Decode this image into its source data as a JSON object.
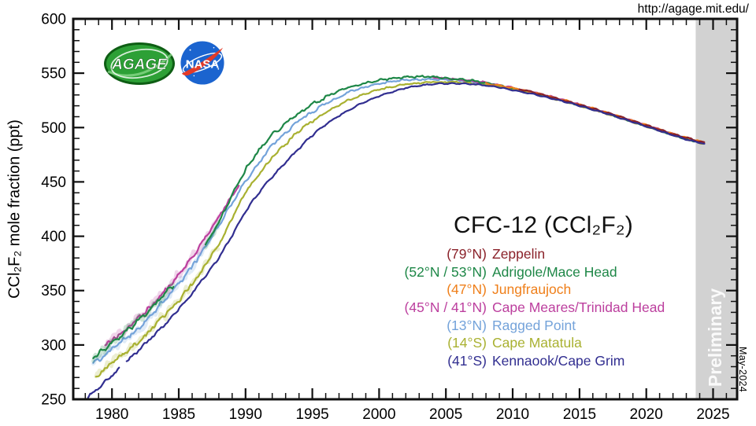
{
  "url": "http://agage.mit.edu/",
  "date_label": "May-2024",
  "preliminary_label": "Preliminary",
  "logos": {
    "agage_text": "AGAGE",
    "nasa_text": "NASA"
  },
  "chart_data": {
    "type": "line",
    "title": "CFC-12 (CCl₂F₂)",
    "ylabel": "CCl₂F₂ mole fraction (ppt)",
    "xlabel": "",
    "xlim": [
      1977.1,
      2026.8
    ],
    "ylim": [
      250,
      600
    ],
    "xticks_major": [
      1980,
      1985,
      1990,
      1995,
      2000,
      2005,
      2010,
      2015,
      2020,
      2025
    ],
    "xtick_minor_step": 1,
    "yticks_major": [
      250,
      300,
      350,
      400,
      450,
      500,
      550,
      600
    ],
    "ytick_minor_step": 10,
    "grid": false,
    "legend_position": "center-right",
    "frame_color": "#111111",
    "preliminary_band": {
      "start_year": 2023.7,
      "color": "#d2d2d2"
    },
    "series": [
      {
        "name": "Zeppelin",
        "lat": "(79°N)",
        "color": "#8a2129",
        "segments": [
          [
            [
              2010.5,
              535.5
            ],
            [
              2012,
              531
            ],
            [
              2014,
              524.5
            ],
            [
              2016,
              517.5
            ],
            [
              2018,
              510
            ],
            [
              2020,
              502
            ],
            [
              2022,
              494
            ],
            [
              2024.35,
              486
            ]
          ]
        ]
      },
      {
        "name": "Adrigole/Mace Head",
        "lat": "(52°N / 53°N)",
        "color": "#1e8747",
        "segments": [
          [
            [
              1978.6,
              289
            ],
            [
              1979.5,
              297
            ],
            [
              1980.5,
              307
            ],
            [
              1981.5,
              317
            ],
            [
              1982.5,
              328
            ],
            [
              1983.5,
              341
            ],
            [
              1984.6,
              355
            ]
          ],
          [
            [
              1987.0,
              391
            ],
            [
              1988,
              413
            ],
            [
              1989,
              438
            ],
            [
              1990,
              461
            ],
            [
              1991,
              479
            ],
            [
              1992,
              493
            ],
            [
              1993,
              504
            ],
            [
              1994,
              513
            ],
            [
              1995,
              521
            ],
            [
              1996,
              528
            ],
            [
              1997,
              534
            ],
            [
              1998,
              538
            ],
            [
              1999,
              541
            ],
            [
              2000,
              543.5
            ],
            [
              2001,
              545.5
            ],
            [
              2002,
              546.5
            ],
            [
              2003,
              547
            ],
            [
              2004,
              546.5
            ],
            [
              2005,
              545.5
            ],
            [
              2006,
              544.5
            ],
            [
              2007,
              543
            ],
            [
              2008,
              541
            ],
            [
              2009,
              538.5
            ],
            [
              2010,
              536
            ],
            [
              2011,
              533.5
            ],
            [
              2012,
              530.5
            ],
            [
              2013,
              527.5
            ],
            [
              2014,
              524
            ],
            [
              2015,
              520.5
            ],
            [
              2016,
              517
            ],
            [
              2017,
              513.5
            ],
            [
              2018,
              509.5
            ],
            [
              2019,
              505.5
            ],
            [
              2020,
              501.5
            ],
            [
              2021,
              497.5
            ],
            [
              2022,
              493.5
            ],
            [
              2023,
              489.5
            ],
            [
              2024.35,
              485.5
            ]
          ]
        ]
      },
      {
        "name": "Jungfraujoch",
        "lat": "(47°N)",
        "color": "#ef7f1a",
        "segments": [
          [
            [
              2008.0,
              540.5
            ],
            [
              2010,
              536.5
            ],
            [
              2012,
              531
            ],
            [
              2014,
              524.5
            ],
            [
              2016,
              517.5
            ],
            [
              2018,
              510
            ],
            [
              2020,
              502
            ],
            [
              2022,
              494
            ],
            [
              2024.35,
              486
            ]
          ]
        ]
      },
      {
        "name": "Cape Meares/Trinidad Head",
        "lat": "(45°N / 41°N)",
        "color": "#bc3f9e",
        "segments": [
          [
            [
              1979.5,
              300
            ],
            [
              1980.5,
              309
            ],
            [
              1981.5,
              319
            ],
            [
              1982.5,
              330
            ],
            [
              1983.5,
              343
            ],
            [
              1984.5,
              357
            ],
            [
              1985.5,
              372
            ],
            [
              1986.5,
              389
            ],
            [
              1987.5,
              408
            ],
            [
              1988.5,
              428
            ],
            [
              1989.5,
              447
            ]
          ],
          [
            [
              2004.0,
              546
            ],
            [
              2005.5,
              545
            ],
            [
              2007,
              543
            ],
            [
              2009,
              539
            ],
            [
              2011,
              534
            ],
            [
              2013,
              528
            ],
            [
              2015,
              521
            ],
            [
              2017,
              513.5
            ],
            [
              2019,
              506
            ],
            [
              2021,
              498
            ],
            [
              2023,
              490
            ],
            [
              2024.35,
              485.5
            ]
          ]
        ]
      },
      {
        "name": "Ragged Point",
        "lat": "(13°N)",
        "color": "#74a3da",
        "segments": [
          [
            [
              1978.6,
              283
            ],
            [
              1980,
              297
            ],
            [
              1982,
              315
            ],
            [
              1984,
              342
            ],
            [
              1986,
              372
            ],
            [
              1988,
              410
            ],
            [
              1990,
              451
            ],
            [
              1992,
              484
            ],
            [
              1994,
              507
            ],
            [
              1996,
              522
            ],
            [
              1998,
              534
            ],
            [
              2000,
              540.5
            ],
            [
              2002,
              544
            ],
            [
              2004,
              544.5
            ],
            [
              2006,
              543.5
            ],
            [
              2008,
              540.5
            ],
            [
              2010,
              536
            ],
            [
              2012,
              530.5
            ],
            [
              2014,
              524
            ],
            [
              2016,
              517
            ],
            [
              2018,
              509.5
            ],
            [
              2020,
              501.5
            ],
            [
              2022,
              493.5
            ],
            [
              2024.35,
              485.5
            ]
          ]
        ]
      },
      {
        "name": "Cape Matatula",
        "lat": "(14°S)",
        "color": "#a9b131",
        "segments": [
          [
            [
              1978.8,
              270
            ],
            [
              1980,
              284
            ],
            [
              1982,
              303
            ],
            [
              1984,
              328
            ],
            [
              1986,
              356
            ],
            [
              1988,
              392
            ],
            [
              1990,
              441
            ],
            [
              1992,
              473
            ],
            [
              1994,
              497
            ],
            [
              1996,
              514
            ],
            [
              1998,
              527
            ],
            [
              2000,
              535
            ],
            [
              2002,
              540
            ],
            [
              2004,
              542
            ],
            [
              2006,
              541.5
            ],
            [
              2008,
              539.5
            ],
            [
              2010,
              535.5
            ],
            [
              2012,
              530
            ],
            [
              2014,
              523.5
            ],
            [
              2016,
              516.5
            ],
            [
              2018,
              509
            ],
            [
              2020,
              501
            ],
            [
              2022,
              493
            ],
            [
              2024.35,
              485
            ]
          ]
        ]
      },
      {
        "name": "Kennaook/Cape Grim",
        "lat": "(41°S)",
        "color": "#312e90",
        "segments": [
          [
            [
              1978.2,
              252
            ],
            [
              1979,
              260
            ],
            [
              1980,
              272
            ],
            [
              1980.6,
              279
            ]
          ],
          [
            [
              1981.1,
              285
            ],
            [
              1982,
              295
            ],
            [
              1983,
              307
            ],
            [
              1984,
              319
            ],
            [
              1985,
              333
            ],
            [
              1986,
              348
            ],
            [
              1987,
              363
            ],
            [
              1988,
              380
            ],
            [
              1989,
              401
            ],
            [
              1990,
              423
            ],
            [
              1991,
              440
            ],
            [
              1992,
              455
            ],
            [
              1993,
              468
            ],
            [
              1994,
              481
            ],
            [
              1995,
              493
            ],
            [
              1996,
              503
            ],
            [
              1997,
              511
            ],
            [
              1998,
              518
            ],
            [
              1999,
              524
            ],
            [
              2000,
              529
            ],
            [
              2001,
              533
            ],
            [
              2002,
              536.5
            ],
            [
              2003,
              538.5
            ],
            [
              2004,
              540
            ],
            [
              2005,
              540.5
            ],
            [
              2006,
              540.5
            ],
            [
              2007,
              540
            ],
            [
              2008,
              538.5
            ],
            [
              2009,
              537
            ],
            [
              2010,
              534.5
            ],
            [
              2011,
              532
            ],
            [
              2012,
              529.5
            ],
            [
              2013,
              526.5
            ],
            [
              2014,
              523.5
            ],
            [
              2015,
              520
            ],
            [
              2016,
              516.5
            ],
            [
              2017,
              513
            ],
            [
              2018,
              509
            ],
            [
              2019,
              505
            ],
            [
              2020,
              501
            ],
            [
              2021,
              497
            ],
            [
              2022,
              493
            ],
            [
              2023,
              489
            ],
            [
              2024.35,
              485
            ]
          ]
        ]
      }
    ]
  }
}
